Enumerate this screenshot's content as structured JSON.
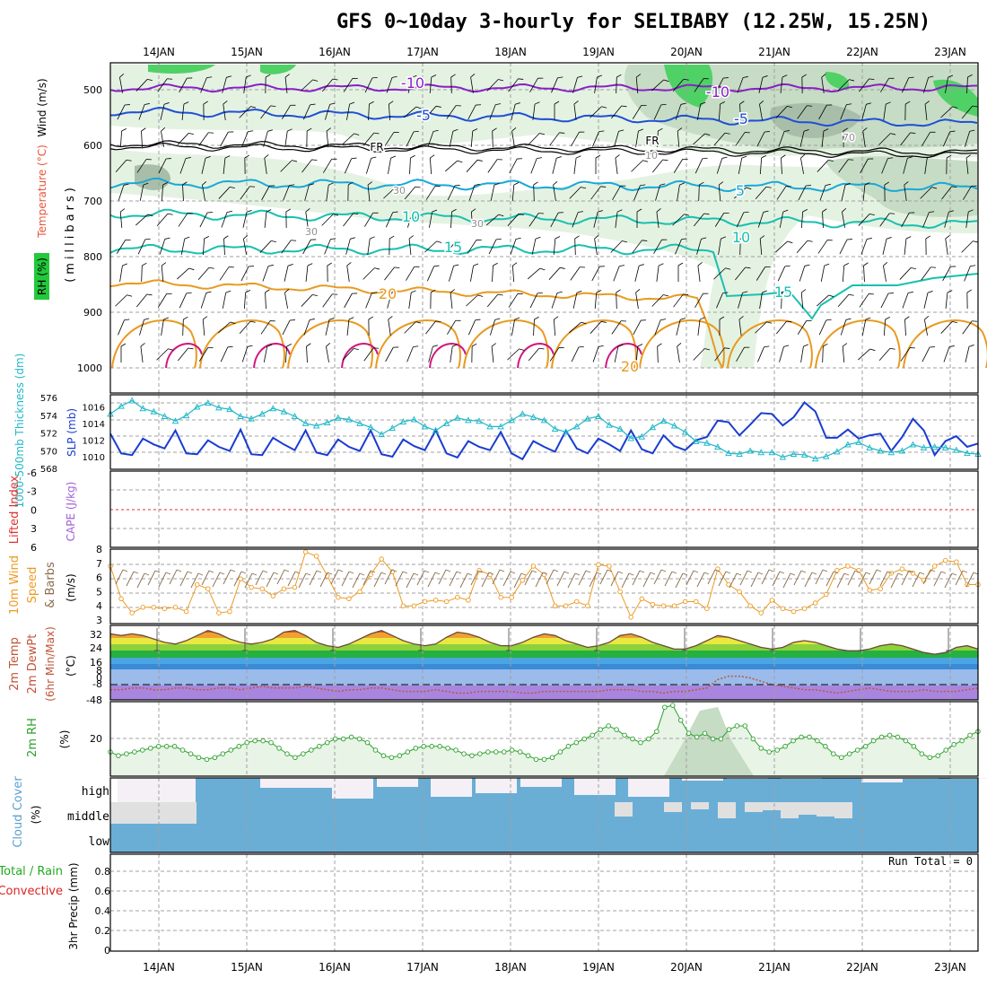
{
  "title": "GFS 0~10day 3-hourly for SELIBABY (12.25W, 15.25N)",
  "dates": [
    "14JAN",
    "15JAN",
    "16JAN",
    "17JAN",
    "18JAN",
    "19JAN",
    "20JAN",
    "21JAN",
    "22JAN",
    "23JAN"
  ],
  "colors": {
    "rh_green": "#22c93b",
    "temp_purple": "#8a1fc8",
    "temp_blue": "#1f4fd6",
    "temp_cyan": "#1aa8d8",
    "temp_teal": "#18c0b0",
    "temp_orange": "#e89a1f",
    "temp_magenta": "#d0157e",
    "slp_blue": "#1a3cd0",
    "thick_cyan": "#20b8c8",
    "wind_orange": "#ee9a22",
    "rh2m_green": "#2ca02c",
    "cloud_blue": "#6aaed6",
    "precip_green": "#22aa22",
    "precip_red": "#dd2222"
  },
  "panels": {
    "upper": {
      "ylabel_parts": {
        "rh": "RH (%)",
        "temp": "Temperature (°C)",
        "wind": "Wind (m/s)",
        "units": "(millibars)"
      },
      "yticks": [
        "500",
        "600",
        "700",
        "800",
        "900",
        "1000"
      ],
      "contour_labels": [
        {
          "text": "-10",
          "color": "temp_purple"
        },
        {
          "text": "-10",
          "color": "temp_purple"
        },
        {
          "text": "-5",
          "color": "temp_blue"
        },
        {
          "text": "-5",
          "color": "temp_blue"
        },
        {
          "text": "FR",
          "color": "black"
        },
        {
          "text": "FR",
          "color": "black"
        },
        {
          "text": "5",
          "color": "temp_cyan"
        },
        {
          "text": "10",
          "color": "temp_teal"
        },
        {
          "text": "10",
          "color": "temp_teal"
        },
        {
          "text": "15",
          "color": "temp_teal"
        },
        {
          "text": "15",
          "color": "temp_teal"
        },
        {
          "text": "20",
          "color": "temp_orange"
        },
        {
          "text": "20",
          "color": "temp_orange"
        },
        {
          "text": "30",
          "color": "gray"
        },
        {
          "text": "30",
          "color": "gray"
        },
        {
          "text": "30",
          "color": "gray"
        },
        {
          "text": "10",
          "color": "gray"
        },
        {
          "text": "70",
          "color": "gray"
        }
      ]
    },
    "slp": {
      "ylabel_left": "1000-500mb Thickness (dm)",
      "ylabel_right": "SLP (mb)",
      "yticks_left": [
        "568",
        "570",
        "572",
        "574",
        "576"
      ],
      "yticks_right": [
        "1010",
        "1012",
        "1014",
        "1016"
      ]
    },
    "cape": {
      "ylabel_left": "Lifted Index",
      "ylabel_right": "CAPE (J/kg)",
      "yticks": [
        "-6",
        "-3",
        "0",
        "3",
        "6"
      ]
    },
    "wind10": {
      "ylabel": [
        "10m Wind",
        "Speed",
        "& Barbs"
      ],
      "units": "(m/s)",
      "yticks": [
        "3",
        "4",
        "5",
        "6",
        "7",
        "8"
      ]
    },
    "temp2m": {
      "ylabel": [
        "2m Temp",
        "2m DewPt",
        "(6hr Min/Max)"
      ],
      "units": "(°C)",
      "yticks": [
        "-48",
        "-8",
        "0",
        "8",
        "16",
        "24",
        "32"
      ]
    },
    "rh2m": {
      "ylabel": "2m RH",
      "units": "(%)",
      "yticks": [
        "20"
      ]
    },
    "cloud": {
      "ylabel": "Cloud Cover",
      "units": "(%)",
      "levels": [
        "high",
        "middle",
        "low"
      ]
    },
    "precip": {
      "ylabel_total": "Total / Rain",
      "ylabel_conv": "Convective",
      "ylabel_main": "3hr Precip (mm)",
      "yticks": [
        "0",
        "0.2",
        "0.4",
        "0.6",
        "0.8"
      ],
      "run_total": "Run Total = 0"
    }
  },
  "chart_data": [
    {
      "type": "line",
      "title": "SLP (mb)",
      "ylim": [
        1008,
        1017
      ],
      "series": [
        {
          "name": "SLP",
          "values": [
            1012.6,
            1010.2,
            1010.0,
            1012.0,
            1011.3,
            1010.8,
            1013.0,
            1010.2,
            1010.1,
            1011.8,
            1011.0,
            1010.5,
            1013.1,
            1010.1,
            1010.0,
            1012.1,
            1011.3,
            1010.6,
            1013.0,
            1010.3,
            1010.0,
            1011.9,
            1011.0,
            1010.5,
            1013.0,
            1010.1,
            1009.8,
            1011.9,
            1011.1,
            1010.6,
            1013.0,
            1010.2,
            1009.7,
            1011.7,
            1011.0,
            1010.6,
            1012.8,
            1010.2,
            1009.5,
            1011.7,
            1011.0,
            1010.4,
            1013.0,
            1010.8,
            1010.2,
            1012.0,
            1011.3,
            1010.5,
            1013.0,
            1010.7,
            1010.2,
            1012.4,
            1011.1,
            1010.6,
            1011.8,
            1012.2,
            1014.2,
            1014.0,
            1012.4,
            1013.7,
            1015.1,
            1015.0,
            1013.6,
            1014.6,
            1016.4,
            1015.3,
            1012.1,
            1012.1,
            1013.1,
            1012.0,
            1012.4,
            1012.6,
            1010.5,
            1012.2,
            1014.4,
            1013.0,
            1010.0,
            1011.7,
            1012.3,
            1011.0,
            1011.4
          ]
        }
      ]
    },
    {
      "type": "line",
      "title": "1000-500mb Thickness (dm)",
      "ylim": [
        568,
        576
      ],
      "series": [
        {
          "name": "Thickness",
          "values": [
            574.5,
            575.5,
            576.2,
            575.2,
            574.8,
            574.2,
            573.6,
            574.3,
            575.4,
            575.9,
            575.3,
            575.1,
            574.2,
            573.9,
            574.5,
            575.2,
            574.8,
            574.2,
            573.3,
            573.0,
            573.4,
            574.0,
            573.8,
            573.3,
            572.8,
            571.9,
            572.7,
            573.5,
            573.8,
            572.9,
            572.4,
            573.3,
            574.0,
            573.7,
            573.6,
            572.9,
            572.9,
            573.7,
            574.5,
            574.1,
            573.7,
            572.6,
            572.2,
            572.9,
            573.9,
            574.2,
            573.1,
            572.6,
            571.4,
            571.6,
            572.8,
            573.6,
            573.0,
            572.2,
            571.0,
            570.8,
            570.3,
            569.5,
            569.4,
            569.8,
            569.6,
            569.6,
            569.0,
            569.4,
            569.3,
            568.8,
            569.1,
            569.7,
            570.6,
            570.9,
            570.2,
            569.8,
            569.6,
            569.8,
            570.6,
            570.2,
            570.3,
            570.2,
            569.9,
            569.5,
            569.4
          ]
        }
      ]
    },
    {
      "type": "line",
      "title": "10m Wind Speed (m/s)",
      "ylim": [
        3,
        8
      ],
      "series": [
        {
          "name": "Wind speed",
          "values": [
            6.8,
            4.5,
            3.5,
            3.9,
            3.9,
            3.8,
            3.9,
            3.6,
            5.5,
            5.2,
            3.5,
            3.6,
            5.9,
            5.3,
            5.2,
            4.7,
            5.2,
            5.3,
            7.8,
            7.5,
            6.1,
            4.6,
            4.5,
            5.0,
            6.2,
            7.3,
            6.4,
            4.0,
            4.0,
            4.3,
            4.4,
            4.3,
            4.6,
            4.4,
            6.5,
            6.2,
            4.6,
            4.6,
            5.8,
            6.8,
            6.2,
            4.0,
            4.0,
            4.3,
            4.0,
            6.9,
            6.8,
            5.0,
            3.2,
            4.5,
            4.1,
            4.0,
            4.0,
            4.3,
            4.3,
            3.8,
            6.6,
            5.5,
            5.0,
            4.0,
            3.5,
            4.4,
            3.8,
            3.6,
            3.8,
            4.2,
            4.8,
            6.5,
            6.8,
            6.5,
            5.1,
            5.2,
            6.3,
            6.6,
            6.3,
            5.8,
            6.8,
            7.2,
            7.1,
            5.5,
            5.5
          ]
        }
      ]
    },
    {
      "type": "area",
      "title": "2m Temp (°C)",
      "ylim": [
        -8,
        36
      ],
      "series": [
        {
          "name": "2m Temp",
          "values": [
            31,
            30,
            31,
            30,
            28,
            26,
            25,
            27,
            30,
            33,
            31,
            28,
            26,
            25,
            26,
            28,
            32,
            33,
            30,
            26,
            24,
            23,
            25,
            28,
            31,
            33,
            30,
            27,
            25,
            24,
            25,
            29,
            32,
            31,
            29,
            26,
            24,
            24,
            26,
            29,
            31,
            30,
            27,
            25,
            23,
            24,
            26,
            30,
            31,
            29,
            26,
            24,
            22,
            22,
            24,
            27,
            30,
            29,
            27,
            25,
            23,
            22,
            23,
            26,
            27,
            26,
            24,
            22,
            21,
            21,
            22,
            24,
            25,
            24,
            22,
            20,
            19,
            20,
            23,
            24,
            22
          ]
        }
      ]
    },
    {
      "type": "line",
      "title": "2m Dew Point (°C)",
      "ylim": [
        -8,
        36
      ],
      "series": [
        {
          "name": "2m DewPt",
          "values": [
            -2,
            -2,
            -1,
            -1,
            -2,
            -2,
            -1,
            -1,
            -2,
            -2,
            -1,
            -1,
            -2,
            -1,
            0,
            -1,
            -1,
            -1,
            0,
            -1,
            -2,
            -3,
            -2,
            -2,
            -1,
            -1,
            -2,
            -3,
            -3,
            -3,
            -2,
            -3,
            -4,
            -4,
            -3,
            -3,
            -3,
            -3,
            -4,
            -4,
            -3,
            -3,
            -3,
            -3,
            -3,
            -3,
            -2,
            -2,
            -2,
            -3,
            -3,
            -4,
            -3,
            -3,
            -2,
            -1,
            4,
            6,
            6,
            5,
            3,
            1,
            0,
            -1,
            -2,
            -2,
            -3,
            -4,
            -3,
            -2,
            -1,
            -2,
            -3,
            -3,
            -3,
            -2,
            -3,
            -3,
            -3,
            -2,
            -1
          ]
        }
      ]
    },
    {
      "type": "area",
      "title": "2m RH (%)",
      "ylim": [
        0,
        40
      ],
      "series": [
        {
          "name": "2m RH",
          "values": [
            13,
            11,
            12,
            13,
            14,
            15,
            16,
            16,
            16,
            14,
            12,
            10,
            9,
            10,
            12,
            14,
            16,
            18,
            19,
            19,
            18,
            15,
            12,
            10,
            12,
            14,
            16,
            18,
            20,
            20,
            21,
            20,
            18,
            14,
            11,
            10,
            11,
            13,
            15,
            16,
            16,
            16,
            15,
            14,
            12,
            11,
            12,
            13,
            13,
            13,
            14,
            13,
            11,
            9,
            9,
            10,
            13,
            16,
            18,
            20,
            22,
            25,
            27,
            25,
            22,
            20,
            18,
            20,
            24,
            37,
            38,
            30,
            23,
            21,
            23,
            20,
            20,
            25,
            27,
            27,
            20,
            15,
            13,
            14,
            16,
            19,
            21,
            21,
            19,
            16,
            12,
            10,
            12,
            14,
            16,
            19,
            21,
            22,
            21,
            19,
            16,
            12,
            10,
            11,
            14,
            17,
            19,
            22,
            24
          ]
        }
      ]
    }
  ]
}
